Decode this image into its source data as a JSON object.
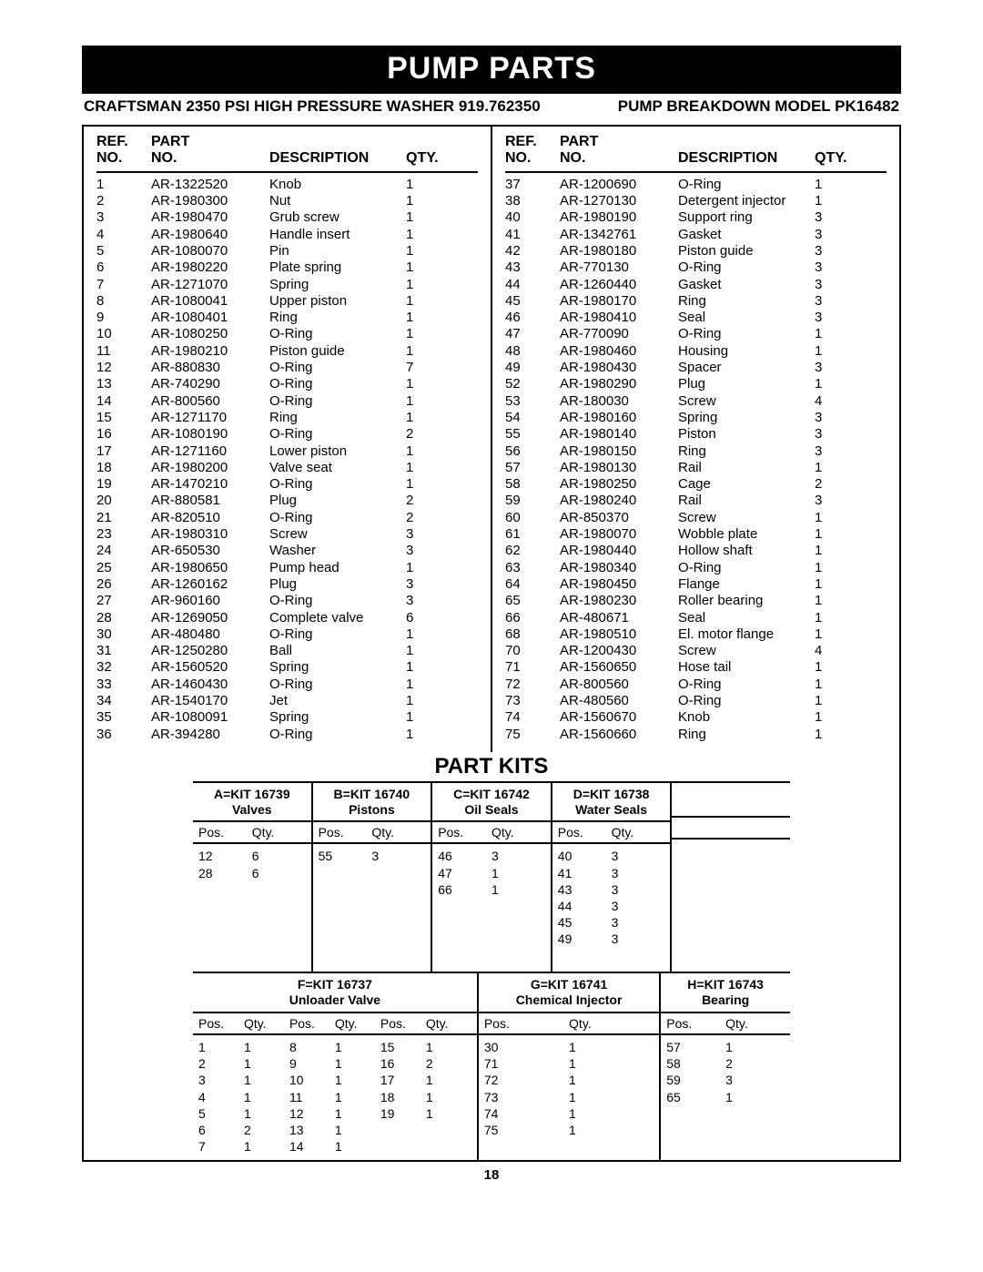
{
  "banner": "PUMP PARTS",
  "subhead_left": "CRAFTSMAN 2350 PSI HIGH PRESSURE WASHER 919.762350",
  "subhead_right": "PUMP BREAKDOWN MODEL PK16482",
  "headers": {
    "ref_l1": "REF.",
    "ref_l2": "NO.",
    "part_l1": "PART",
    "part_l2": "NO.",
    "desc": "DESCRIPTION",
    "qty": "QTY."
  },
  "left_rows": [
    {
      "ref": "1",
      "part": "AR-1322520",
      "desc": "Knob",
      "qty": "1"
    },
    {
      "ref": "2",
      "part": "AR-1980300",
      "desc": "Nut",
      "qty": "1"
    },
    {
      "ref": "3",
      "part": "AR-1980470",
      "desc": "Grub screw",
      "qty": "1"
    },
    {
      "ref": "4",
      "part": "AR-1980640",
      "desc": "Handle insert",
      "qty": "1"
    },
    {
      "ref": "5",
      "part": "AR-1080070",
      "desc": "Pin",
      "qty": "1"
    },
    {
      "ref": "6",
      "part": "AR-1980220",
      "desc": "Plate spring",
      "qty": "1"
    },
    {
      "ref": "7",
      "part": "AR-1271070",
      "desc": "Spring",
      "qty": "1"
    },
    {
      "ref": "8",
      "part": "AR-1080041",
      "desc": "Upper piston",
      "qty": "1"
    },
    {
      "ref": "9",
      "part": "AR-1080401",
      "desc": "Ring",
      "qty": "1"
    },
    {
      "ref": "10",
      "part": "AR-1080250",
      "desc": "O-Ring",
      "qty": "1"
    },
    {
      "ref": "11",
      "part": "AR-1980210",
      "desc": "Piston guide",
      "qty": "1"
    },
    {
      "ref": "12",
      "part": "AR-880830",
      "desc": "O-Ring",
      "qty": "7"
    },
    {
      "ref": "13",
      "part": "AR-740290",
      "desc": "O-Ring",
      "qty": "1"
    },
    {
      "ref": "14",
      "part": "AR-800560",
      "desc": "O-Ring",
      "qty": "1"
    },
    {
      "ref": "15",
      "part": "AR-1271170",
      "desc": "Ring",
      "qty": "1"
    },
    {
      "ref": "16",
      "part": "AR-1080190",
      "desc": "O-Ring",
      "qty": "2"
    },
    {
      "ref": "17",
      "part": "AR-1271160",
      "desc": "Lower piston",
      "qty": "1"
    },
    {
      "ref": "18",
      "part": "AR-1980200",
      "desc": "Valve seat",
      "qty": "1"
    },
    {
      "ref": "19",
      "part": "AR-1470210",
      "desc": "O-Ring",
      "qty": "1"
    },
    {
      "ref": "20",
      "part": "AR-880581",
      "desc": "Plug",
      "qty": "2"
    },
    {
      "ref": "21",
      "part": "AR-820510",
      "desc": "O-Ring",
      "qty": "2"
    },
    {
      "ref": "23",
      "part": "AR-1980310",
      "desc": "Screw",
      "qty": "3"
    },
    {
      "ref": "24",
      "part": "AR-650530",
      "desc": "Washer",
      "qty": "3"
    },
    {
      "ref": "25",
      "part": "AR-1980650",
      "desc": "Pump head",
      "qty": "1"
    },
    {
      "ref": "26",
      "part": "AR-1260162",
      "desc": "Plug",
      "qty": "3"
    },
    {
      "ref": "27",
      "part": "AR-960160",
      "desc": "O-Ring",
      "qty": "3"
    },
    {
      "ref": "28",
      "part": "AR-1269050",
      "desc": "Complete valve",
      "qty": "6"
    },
    {
      "ref": "30",
      "part": "AR-480480",
      "desc": "O-Ring",
      "qty": "1"
    },
    {
      "ref": "31",
      "part": "AR-1250280",
      "desc": "Ball",
      "qty": "1"
    },
    {
      "ref": "32",
      "part": "AR-1560520",
      "desc": "Spring",
      "qty": "1"
    },
    {
      "ref": "33",
      "part": "AR-1460430",
      "desc": "O-Ring",
      "qty": "1"
    },
    {
      "ref": "34",
      "part": "AR-1540170",
      "desc": "Jet",
      "qty": "1"
    },
    {
      "ref": "35",
      "part": "AR-1080091",
      "desc": "Spring",
      "qty": "1"
    },
    {
      "ref": "36",
      "part": "AR-394280",
      "desc": "O-Ring",
      "qty": "1"
    }
  ],
  "right_rows": [
    {
      "ref": "37",
      "part": "AR-1200690",
      "desc": "O-Ring",
      "qty": "1"
    },
    {
      "ref": "38",
      "part": "AR-1270130",
      "desc": "Detergent injector",
      "qty": "1"
    },
    {
      "ref": "40",
      "part": "AR-1980190",
      "desc": "Support ring",
      "qty": "3"
    },
    {
      "ref": "41",
      "part": "AR-1342761",
      "desc": "Gasket",
      "qty": "3"
    },
    {
      "ref": "42",
      "part": "AR-1980180",
      "desc": "Piston guide",
      "qty": "3"
    },
    {
      "ref": "43",
      "part": "AR-770130",
      "desc": "O-Ring",
      "qty": "3"
    },
    {
      "ref": "44",
      "part": "AR-1260440",
      "desc": "Gasket",
      "qty": "3"
    },
    {
      "ref": "45",
      "part": "AR-1980170",
      "desc": "Ring",
      "qty": "3"
    },
    {
      "ref": "46",
      "part": "AR-1980410",
      "desc": "Seal",
      "qty": "3"
    },
    {
      "ref": "47",
      "part": "AR-770090",
      "desc": "O-Ring",
      "qty": "1"
    },
    {
      "ref": "48",
      "part": "AR-1980460",
      "desc": "Housing",
      "qty": "1"
    },
    {
      "ref": "49",
      "part": "AR-1980430",
      "desc": "Spacer",
      "qty": "3"
    },
    {
      "ref": "52",
      "part": "AR-1980290",
      "desc": "Plug",
      "qty": "1"
    },
    {
      "ref": "53",
      "part": "AR-180030",
      "desc": "Screw",
      "qty": "4"
    },
    {
      "ref": "54",
      "part": "AR-1980160",
      "desc": "Spring",
      "qty": "3"
    },
    {
      "ref": "55",
      "part": "AR-1980140",
      "desc": "Piston",
      "qty": "3"
    },
    {
      "ref": "56",
      "part": "AR-1980150",
      "desc": "Ring",
      "qty": "3"
    },
    {
      "ref": "57",
      "part": "AR-1980130",
      "desc": "Rail",
      "qty": "1"
    },
    {
      "ref": "58",
      "part": "AR-1980250",
      "desc": "Cage",
      "qty": "2"
    },
    {
      "ref": "59",
      "part": "AR-1980240",
      "desc": "Rail",
      "qty": "3"
    },
    {
      "ref": "60",
      "part": "AR-850370",
      "desc": "Screw",
      "qty": "1"
    },
    {
      "ref": "61",
      "part": "AR-1980070",
      "desc": "Wobble plate",
      "qty": "1"
    },
    {
      "ref": "62",
      "part": "AR-1980440",
      "desc": "Hollow shaft",
      "qty": "1"
    },
    {
      "ref": "63",
      "part": "AR-1980340",
      "desc": "O-Ring",
      "qty": "1"
    },
    {
      "ref": "64",
      "part": "AR-1980450",
      "desc": "Flange",
      "qty": "1"
    },
    {
      "ref": "65",
      "part": "AR-1980230",
      "desc": "Roller bearing",
      "qty": "1"
    },
    {
      "ref": "66",
      "part": "AR-480671",
      "desc": "Seal",
      "qty": "1"
    },
    {
      "ref": "68",
      "part": "AR-1980510",
      "desc": "El. motor flange",
      "qty": "1"
    },
    {
      "ref": "70",
      "part": "AR-1200430",
      "desc": "Screw",
      "qty": "4"
    },
    {
      "ref": "71",
      "part": "AR-1560650",
      "desc": "Hose tail",
      "qty": "1"
    },
    {
      "ref": "72",
      "part": "AR-800560",
      "desc": "O-Ring",
      "qty": "1"
    },
    {
      "ref": "73",
      "part": "AR-480560",
      "desc": "O-Ring",
      "qty": "1"
    },
    {
      "ref": "74",
      "part": "AR-1560670",
      "desc": "Knob",
      "qty": "1"
    },
    {
      "ref": "75",
      "part": "AR-1560660",
      "desc": "Ring",
      "qty": "1"
    }
  ],
  "kits_title": "PART KITS",
  "kits_small_head": {
    "pos": "Pos.",
    "qty": "Qty."
  },
  "kit_a": {
    "head_l1": "A=KIT 16739",
    "head_l2": "Valves",
    "rows": [
      [
        "12",
        "6"
      ],
      [
        "28",
        "6"
      ]
    ]
  },
  "kit_b": {
    "head_l1": "B=KIT 16740",
    "head_l2": "Pistons",
    "rows": [
      [
        "55",
        "3"
      ]
    ]
  },
  "kit_c": {
    "head_l1": "C=KIT 16742",
    "head_l2": "Oil Seals",
    "rows": [
      [
        "46",
        "3"
      ],
      [
        "47",
        "1"
      ],
      [
        "66",
        "1"
      ]
    ]
  },
  "kit_d": {
    "head_l1": "D=KIT 16738",
    "head_l2": "Water Seals",
    "rows": [
      [
        "40",
        "3"
      ],
      [
        "41",
        "3"
      ],
      [
        "43",
        "3"
      ],
      [
        "44",
        "3"
      ],
      [
        "45",
        "3"
      ],
      [
        "49",
        "3"
      ]
    ]
  },
  "kit_empty": {
    "head_l1": "",
    "head_l2": ""
  },
  "kit_f": {
    "head_l1": "F=KIT 16737",
    "head_l2": "Unloader Valve",
    "cols": [
      [
        [
          "1",
          "1"
        ],
        [
          "2",
          "1"
        ],
        [
          "3",
          "1"
        ],
        [
          "4",
          "1"
        ],
        [
          "5",
          "1"
        ],
        [
          "6",
          "2"
        ],
        [
          "7",
          "1"
        ]
      ],
      [
        [
          "8",
          "1"
        ],
        [
          "9",
          "1"
        ],
        [
          "10",
          "1"
        ],
        [
          "11",
          "1"
        ],
        [
          "12",
          "1"
        ],
        [
          "13",
          "1"
        ],
        [
          "14",
          "1"
        ]
      ],
      [
        [
          "15",
          "1"
        ],
        [
          "16",
          "2"
        ],
        [
          "17",
          "1"
        ],
        [
          "18",
          "1"
        ],
        [
          "19",
          "1"
        ]
      ]
    ]
  },
  "kit_g": {
    "head_l1": "G=KIT 16741",
    "head_l2": "Chemical Injector",
    "rows": [
      [
        "30",
        "1"
      ],
      [
        "71",
        "1"
      ],
      [
        "72",
        "1"
      ],
      [
        "73",
        "1"
      ],
      [
        "74",
        "1"
      ],
      [
        "75",
        "1"
      ]
    ]
  },
  "kit_h": {
    "head_l1": "H=KIT 16743",
    "head_l2": "Bearing",
    "rows": [
      [
        "57",
        "1"
      ],
      [
        "58",
        "2"
      ],
      [
        "59",
        "3"
      ],
      [
        "65",
        "1"
      ]
    ]
  },
  "pagenum": "18"
}
